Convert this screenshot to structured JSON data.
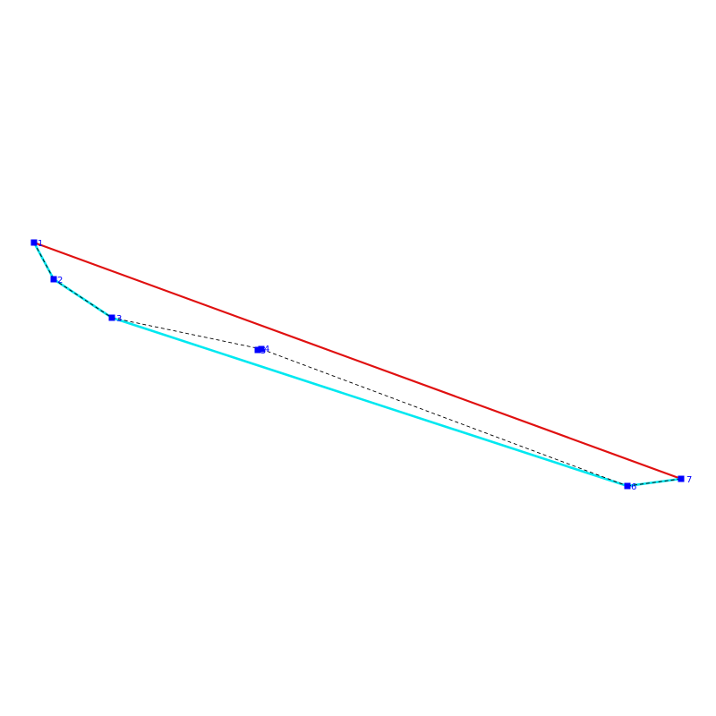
{
  "diagram": {
    "colors": {
      "hull_edge": "#e01010",
      "chain_edge": "#00e8f0",
      "dashed_edge": "#000000",
      "vertex": "#0000ff",
      "label": "#0000ff",
      "background": "#ffffff"
    },
    "vertices": [
      {
        "id": "1",
        "label": "1"
      },
      {
        "id": "2",
        "label": "2"
      },
      {
        "id": "3",
        "label": "3"
      },
      {
        "id": "4",
        "label": "4"
      },
      {
        "id": "5",
        "label": "5"
      },
      {
        "id": "6",
        "label": "6"
      },
      {
        "id": "7",
        "label": "7"
      }
    ],
    "edges": [
      {
        "from": "1",
        "to": "7",
        "style": "hull"
      },
      {
        "from": "1",
        "to": "2",
        "style": "chain"
      },
      {
        "from": "2",
        "to": "3",
        "style": "chain"
      },
      {
        "from": "3",
        "to": "6",
        "style": "chain"
      },
      {
        "from": "6",
        "to": "7",
        "style": "chain"
      },
      {
        "from": "1",
        "to": "2",
        "style": "dashed"
      },
      {
        "from": "2",
        "to": "3",
        "style": "dashed"
      },
      {
        "from": "3",
        "to": "4",
        "style": "dashed"
      },
      {
        "from": "4",
        "to": "6",
        "style": "dashed"
      },
      {
        "from": "6",
        "to": "7",
        "style": "dashed"
      }
    ]
  }
}
